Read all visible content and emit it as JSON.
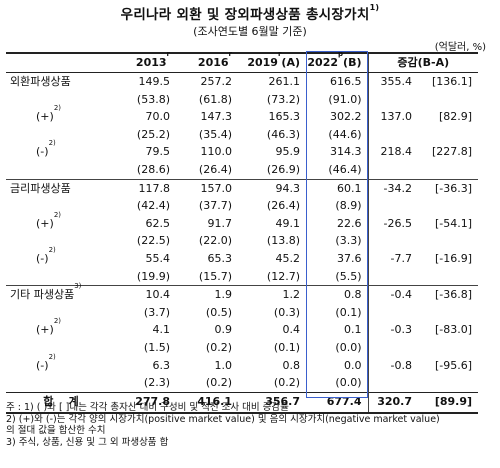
{
  "title": "우리나라 외환 및 장외파생상품 총시장가치",
  "title_sup": "1)",
  "subtitle": "(조사연도별 6월말 기준)",
  "unit": "(억달러, %)",
  "headers": {
    "c2013": "2013",
    "c2013_sup": "r",
    "c2016": "2016",
    "c2016_sup": "r",
    "c2019": "2019",
    "c2019_sup": "r",
    "c2019_suffix": "(A)",
    "c2022": "2022",
    "c2022_sup": "p",
    "c2022_suffix": "(B)",
    "diff": "증감(B-A)"
  },
  "rows": [
    {
      "label": "외환파생상품",
      "sup": "",
      "type": "main",
      "v": [
        "149.5",
        "257.2",
        "261.1",
        "616.5",
        "355.4",
        "[136.1]"
      ]
    },
    {
      "label": "",
      "sup": "",
      "type": "paren",
      "v": [
        "(53.8)",
        "(61.8)",
        "(73.2)",
        "(91.0)",
        "",
        ""
      ]
    },
    {
      "label": "(+)",
      "sup": "2)",
      "type": "sub",
      "v": [
        "70.0",
        "147.3",
        "165.3",
        "302.2",
        "137.0",
        "[82.9]"
      ]
    },
    {
      "label": "",
      "sup": "",
      "type": "paren",
      "v": [
        "(25.2)",
        "(35.4)",
        "(46.3)",
        "(44.6)",
        "",
        ""
      ]
    },
    {
      "label": "(-)",
      "sup": "2)",
      "type": "sub",
      "v": [
        "79.5",
        "110.0",
        "95.9",
        "314.3",
        "218.4",
        "[227.8]"
      ]
    },
    {
      "label": "",
      "sup": "",
      "type": "paren",
      "v": [
        "(28.6)",
        "(26.4)",
        "(26.9)",
        "(46.4)",
        "",
        ""
      ]
    },
    {
      "label": "금리파생상품",
      "sup": "",
      "type": "main",
      "v": [
        "117.8",
        "157.0",
        "94.3",
        "60.1",
        "-34.2",
        "[-36.3]"
      ]
    },
    {
      "label": "",
      "sup": "",
      "type": "paren",
      "v": [
        "(42.4)",
        "(37.7)",
        "(26.4)",
        "(8.9)",
        "",
        ""
      ]
    },
    {
      "label": "(+)",
      "sup": "2)",
      "type": "sub",
      "v": [
        "62.5",
        "91.7",
        "49.1",
        "22.6",
        "-26.5",
        "[-54.1]"
      ]
    },
    {
      "label": "",
      "sup": "",
      "type": "paren",
      "v": [
        "(22.5)",
        "(22.0)",
        "(13.8)",
        "(3.3)",
        "",
        ""
      ]
    },
    {
      "label": "(-)",
      "sup": "2)",
      "type": "sub",
      "v": [
        "55.4",
        "65.3",
        "45.2",
        "37.6",
        "-7.7",
        "[-16.9]"
      ]
    },
    {
      "label": "",
      "sup": "",
      "type": "paren",
      "v": [
        "(19.9)",
        "(15.7)",
        "(12.7)",
        "(5.5)",
        "",
        ""
      ]
    },
    {
      "label": "기타 파생상품",
      "sup": "3)",
      "type": "main",
      "v": [
        "10.4",
        "1.9",
        "1.2",
        "0.8",
        "-0.4",
        "[-36.8]"
      ]
    },
    {
      "label": "",
      "sup": "",
      "type": "paren",
      "v": [
        "(3.7)",
        "(0.5)",
        "(0.3)",
        "(0.1)",
        "",
        ""
      ]
    },
    {
      "label": "(+)",
      "sup": "2)",
      "type": "sub",
      "v": [
        "4.1",
        "0.9",
        "0.4",
        "0.1",
        "-0.3",
        "[-83.0]"
      ]
    },
    {
      "label": "",
      "sup": "",
      "type": "paren",
      "v": [
        "(1.5)",
        "(0.2)",
        "(0.1)",
        "(0.0)",
        "",
        ""
      ]
    },
    {
      "label": "(-)",
      "sup": "2)",
      "type": "sub",
      "v": [
        "6.3",
        "1.0",
        "0.8",
        "0.0",
        "-0.8",
        "[-95.6]"
      ]
    },
    {
      "label": "",
      "sup": "",
      "type": "paren",
      "v": [
        "(2.3)",
        "(0.2)",
        "(0.2)",
        "(0.0)",
        "",
        ""
      ]
    }
  ],
  "total": {
    "label": "합    계",
    "v": [
      "277.8",
      "416.1",
      "356.7",
      "677.4",
      "320.7",
      "[89.9]"
    ]
  },
  "notes": [
    "주 : 1) (  )와 [  ]내는 각각 총자산 대비 구성비 및 직전 조사 대비 증감률",
    "       2) (+)와 (-)는 각각 양의 시장가치(positive market value) 및 음의 시장가치(negative market value)",
    "           의 절대 값을 합산한 수치",
    "       3) 주식, 상품, 신용 및 그 외 파생상품 합"
  ],
  "colors": {
    "highlight_border": "#3a5fcd"
  }
}
